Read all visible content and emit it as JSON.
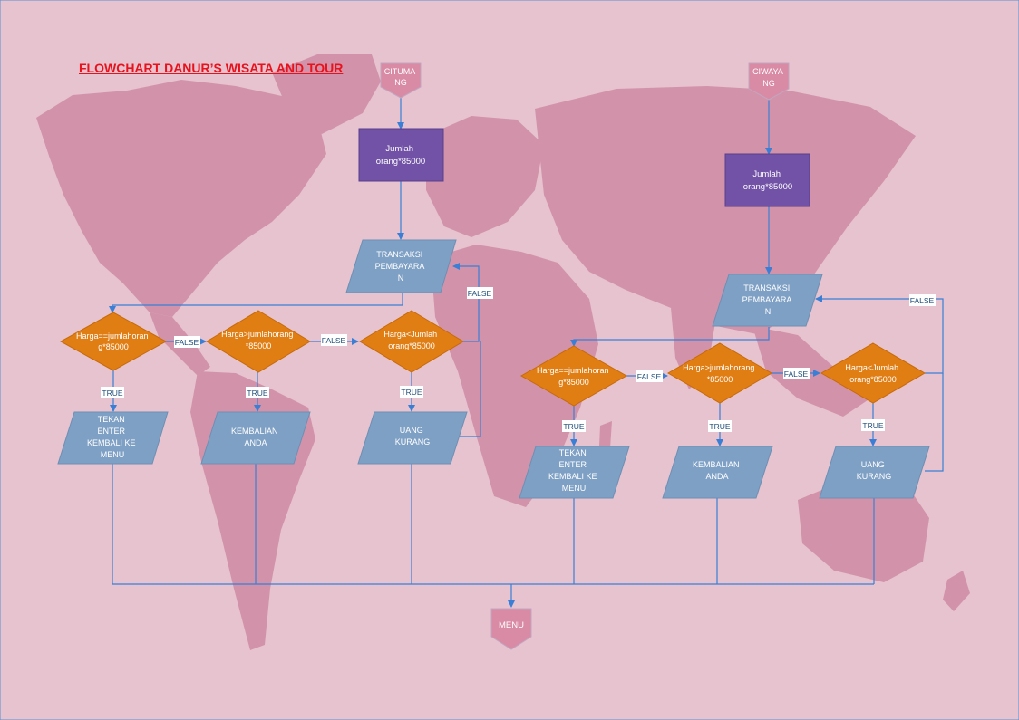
{
  "title": "FLOWCHART DANUR’S WISATA AND TOUR",
  "colors": {
    "background": "#e6c3cf",
    "continent": "#d293aa",
    "process": "#7152a6",
    "io_shape": "#7fa0c5",
    "decision": "#e07e14",
    "connector": "#d98aa4",
    "line": "#3a7fd5",
    "title": "#e8121c"
  },
  "left_flow": {
    "start": [
      "CITUMA",
      "NG"
    ],
    "process": [
      "Jumlah",
      "orang*85000"
    ],
    "transaction": [
      "TRANSAKSI",
      "PEMBAYARA",
      "N"
    ],
    "decisions": [
      [
        "Harga==jumlahoran",
        "g*85000"
      ],
      [
        "Harga>jumlahorang",
        "*85000"
      ],
      [
        "Harga<Jumlah",
        "orang*85000"
      ]
    ],
    "outputs": [
      [
        "TEKAN",
        "ENTER",
        "KEMBALI KE",
        "MENU"
      ],
      [
        "KEMBALIAN",
        "ANDA"
      ],
      [
        "UANG",
        "KURANG"
      ]
    ]
  },
  "right_flow": {
    "start": [
      "CIWAYA",
      "NG"
    ],
    "process": [
      "Jumlah",
      "orang*85000"
    ],
    "transaction": [
      "TRANSAKSI",
      "PEMBAYARA",
      "N"
    ],
    "decisions": [
      [
        "Harga==jumlahoran",
        "g*85000"
      ],
      [
        "Harga>jumlahorang",
        "*85000"
      ],
      [
        "Harga<Jumlah",
        "orang*85000"
      ]
    ],
    "outputs": [
      [
        "TEKAN",
        "ENTER",
        "KEMBALI KE",
        "MENU"
      ],
      [
        "KEMBALIAN",
        "ANDA"
      ],
      [
        "UANG",
        "KURANG"
      ]
    ]
  },
  "labels": {
    "true": "TRUE",
    "false": "FALSE"
  },
  "end": "MENU"
}
